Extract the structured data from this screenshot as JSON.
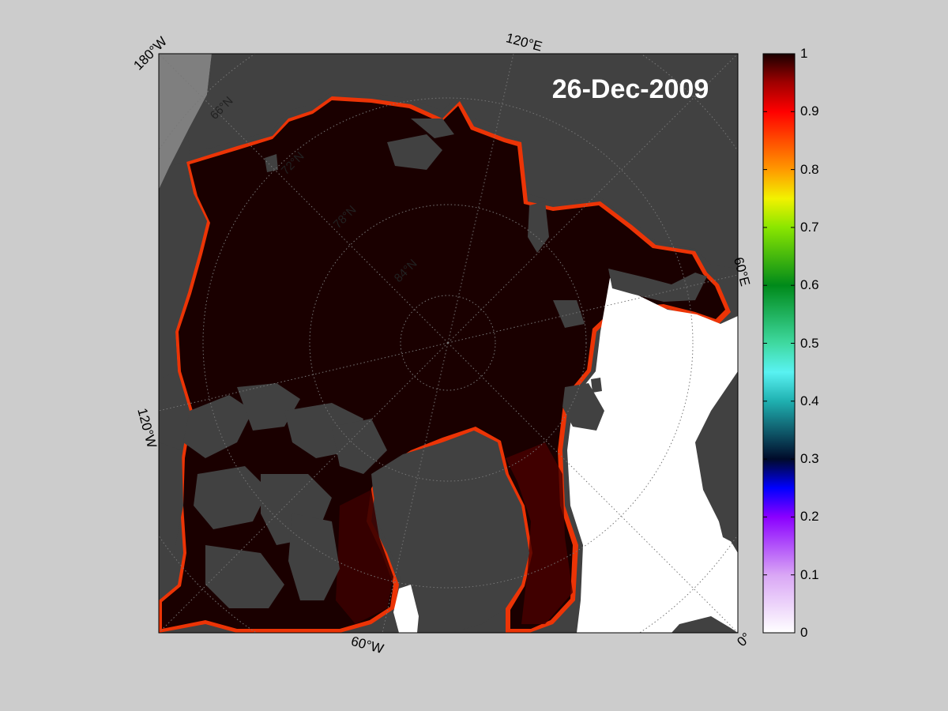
{
  "map": {
    "date_label": "26-Dec-2009",
    "colors": {
      "figure_bg": "#cccccc",
      "land": "#414141",
      "outside_domain": "#7f7f7f",
      "ice_full": "#1a0000",
      "open_water": "#ffffff"
    },
    "graticule": {
      "longitude_labels": [
        "180°W",
        "120°E",
        "60°E",
        "0°",
        "60°W",
        "120°W"
      ],
      "latitude_labels": [
        "66°N",
        "72°N",
        "78°N",
        "84°N"
      ]
    }
  },
  "colorbar": {
    "min": 0,
    "max": 1,
    "ticks": [
      "1",
      "0.9",
      "0.8",
      "0.7",
      "0.6",
      "0.5",
      "0.4",
      "0.3",
      "0.2",
      "0.1",
      "0"
    ],
    "stops": [
      {
        "value": 0.0,
        "color": "#ffffff"
      },
      {
        "value": 0.1,
        "color": "#d9a6f5"
      },
      {
        "value": 0.2,
        "color": "#8a00ff"
      },
      {
        "value": 0.25,
        "color": "#0000ff"
      },
      {
        "value": 0.3,
        "color": "#000a2a"
      },
      {
        "value": 0.4,
        "color": "#1fb0b0"
      },
      {
        "value": 0.45,
        "color": "#59f2f2"
      },
      {
        "value": 0.5,
        "color": "#3fd9a0"
      },
      {
        "value": 0.6,
        "color": "#008a1a"
      },
      {
        "value": 0.7,
        "color": "#8ae600"
      },
      {
        "value": 0.75,
        "color": "#f2f200"
      },
      {
        "value": 0.8,
        "color": "#ff9900"
      },
      {
        "value": 0.9,
        "color": "#ff0000"
      },
      {
        "value": 0.95,
        "color": "#a00000"
      },
      {
        "value": 1.0,
        "color": "#1a0000"
      }
    ]
  }
}
